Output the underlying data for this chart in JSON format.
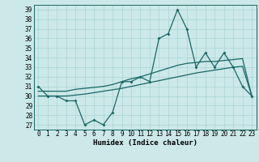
{
  "title": "",
  "xlabel": "Humidex (Indice chaleur)",
  "background_color": "#cce8e8",
  "grid_color": "#aad4d4",
  "line_color": "#1a6666",
  "xlim": [
    -0.5,
    23.5
  ],
  "ylim": [
    26.5,
    39.5
  ],
  "yticks": [
    27,
    28,
    29,
    30,
    31,
    32,
    33,
    34,
    35,
    36,
    37,
    38,
    39
  ],
  "xticks": [
    0,
    1,
    2,
    3,
    4,
    5,
    6,
    7,
    8,
    9,
    10,
    11,
    12,
    13,
    14,
    15,
    16,
    17,
    18,
    19,
    20,
    21,
    22,
    23
  ],
  "series_main": [
    31,
    30,
    30,
    29.5,
    29.5,
    27,
    27.5,
    27,
    28.3,
    31.5,
    31.5,
    32,
    31.5,
    36,
    36.5,
    39,
    37,
    33,
    34.5,
    33,
    34.5,
    33,
    31,
    30
  ],
  "series_high": [
    30.5,
    30.5,
    30.5,
    30.5,
    30.7,
    30.8,
    30.9,
    31.0,
    31.2,
    31.5,
    31.8,
    32.0,
    32.3,
    32.6,
    32.9,
    33.2,
    33.4,
    33.5,
    33.6,
    33.6,
    33.7,
    33.8,
    33.9,
    30.0
  ],
  "series_low": [
    30.0,
    30.0,
    30.0,
    30.0,
    30.1,
    30.2,
    30.35,
    30.5,
    30.65,
    30.8,
    31.0,
    31.2,
    31.4,
    31.6,
    31.8,
    32.0,
    32.2,
    32.4,
    32.55,
    32.7,
    32.85,
    33.0,
    33.1,
    30.0
  ],
  "tick_fontsize": 5.5,
  "xlabel_fontsize": 6.5
}
